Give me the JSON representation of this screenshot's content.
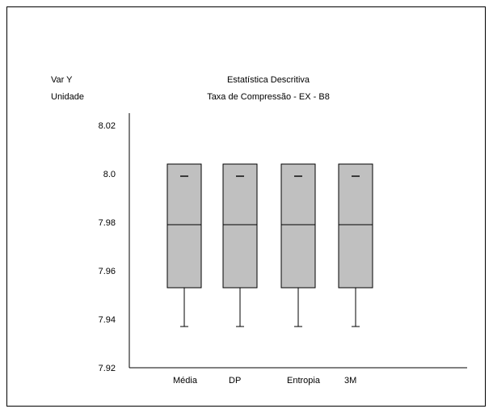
{
  "header": {
    "var_label": "Var Y",
    "unit_label": "Unidade",
    "title": "Estatística Descritiva",
    "subtitle": "Taxa de Compressão - EX - B8"
  },
  "colors": {
    "box_fill": "#c0c0c0",
    "stroke": "#000000",
    "background": "#ffffff"
  },
  "chart_data": {
    "type": "boxplot",
    "title": "Estatística Descritiva",
    "subtitle": "Taxa de Compressão - EX - B8",
    "xlabel": "",
    "ylabel": "Var Y",
    "yunit": "Unidade",
    "ylim": [
      7.92,
      8.02
    ],
    "yticks": [
      {
        "value": 7.92,
        "label": "7.92"
      },
      {
        "value": 7.94,
        "label": "7.94"
      },
      {
        "value": 7.96,
        "label": "7.96"
      },
      {
        "value": 7.98,
        "label": "7.98"
      },
      {
        "value": 8.0,
        "label": "8.0"
      },
      {
        "value": 8.02,
        "label": "8.02"
      }
    ],
    "grid": false,
    "legend": "none",
    "categories": [
      "Média",
      "DP",
      "Entropia",
      "3M"
    ],
    "boxes": [
      {
        "category": "Média",
        "whisker_low": 7.937,
        "q1": 7.953,
        "median": 7.979,
        "q3": 8.004,
        "whisker_high": 8.004,
        "max_mark": 7.999
      },
      {
        "category": "DP",
        "whisker_low": 7.937,
        "q1": 7.953,
        "median": 7.979,
        "q3": 8.004,
        "whisker_high": 8.004,
        "max_mark": 7.999
      },
      {
        "category": "Entropia",
        "whisker_low": 7.937,
        "q1": 7.953,
        "median": 7.979,
        "q3": 8.004,
        "whisker_high": 8.004,
        "max_mark": 7.999
      },
      {
        "category": "3M",
        "whisker_low": 7.937,
        "q1": 7.953,
        "median": 7.979,
        "q3": 8.004,
        "whisker_high": 8.004,
        "max_mark": 7.999
      }
    ]
  }
}
